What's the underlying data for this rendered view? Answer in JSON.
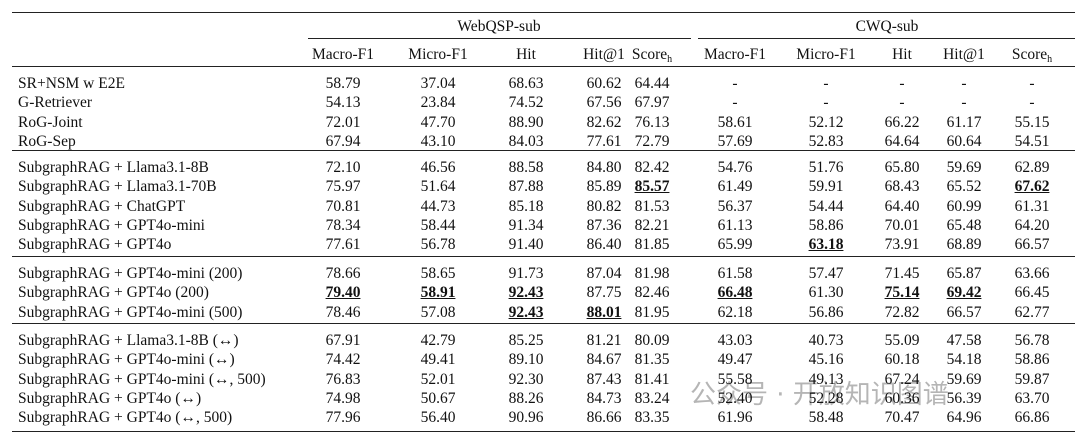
{
  "table": {
    "groups": [
      "WebQSP-sub",
      "CWQ-sub"
    ],
    "columns": [
      "Macro-F1",
      "Micro-F1",
      "Hit",
      "Hit@1",
      {
        "main": "Score",
        "sub": "h"
      }
    ],
    "sections": [
      [
        {
          "method": "SR+NSM w E2E",
          "values": [
            "58.79",
            "37.04",
            "68.63",
            "60.62",
            "64.44",
            "-",
            "-",
            "-",
            "-",
            "-"
          ]
        },
        {
          "method": "G-Retriever",
          "values": [
            "54.13",
            "23.84",
            "74.52",
            "67.56",
            "67.97",
            "-",
            "-",
            "-",
            "-",
            "-"
          ]
        },
        {
          "method": "RoG-Joint",
          "values": [
            "72.01",
            "47.70",
            "88.90",
            "82.62",
            "76.13",
            "58.61",
            "52.12",
            "66.22",
            "61.17",
            "55.15"
          ]
        },
        {
          "method": "RoG-Sep",
          "values": [
            "67.94",
            "43.10",
            "84.03",
            "77.61",
            "72.79",
            "57.69",
            "52.83",
            "64.64",
            "60.64",
            "54.51"
          ]
        }
      ],
      [
        {
          "method": "SubgraphRAG + Llama3.1-8B",
          "values": [
            "72.10",
            "46.56",
            "88.58",
            "84.80",
            "82.42",
            "54.76",
            "51.76",
            "65.80",
            "59.69",
            "62.89"
          ]
        },
        {
          "method": "SubgraphRAG + Llama3.1-70B",
          "values": [
            "75.97",
            "51.64",
            "87.88",
            "85.89",
            "85.57",
            "61.49",
            "59.91",
            "68.43",
            "65.52",
            "67.62"
          ]
        },
        {
          "method": "SubgraphRAG + ChatGPT",
          "values": [
            "70.81",
            "44.73",
            "85.18",
            "80.82",
            "81.53",
            "56.37",
            "54.44",
            "64.40",
            "60.99",
            "61.31"
          ]
        },
        {
          "method": "SubgraphRAG + GPT4o-mini",
          "values": [
            "78.34",
            "58.44",
            "91.34",
            "87.36",
            "82.21",
            "61.13",
            "58.86",
            "70.01",
            "65.48",
            "64.20"
          ]
        },
        {
          "method": "SubgraphRAG + GPT4o",
          "values": [
            "77.61",
            "56.78",
            "91.40",
            "86.40",
            "81.85",
            "65.99",
            "63.18",
            "73.91",
            "68.89",
            "66.57"
          ]
        }
      ],
      [
        {
          "method": "SubgraphRAG + GPT4o-mini (200)",
          "values": [
            "78.66",
            "58.65",
            "91.73",
            "87.04",
            "81.98",
            "61.58",
            "57.47",
            "71.45",
            "65.87",
            "63.66"
          ]
        },
        {
          "method": "SubgraphRAG + GPT4o (200)",
          "values": [
            "79.40",
            "58.91",
            "92.43",
            "87.75",
            "82.46",
            "66.48",
            "61.30",
            "75.14",
            "69.42",
            "66.45"
          ]
        },
        {
          "method": "SubgraphRAG + GPT4o-mini (500)",
          "values": [
            "78.46",
            "57.08",
            "92.43",
            "88.01",
            "81.95",
            "62.18",
            "56.86",
            "72.82",
            "66.57",
            "62.77"
          ]
        }
      ],
      [
        {
          "method": "SubgraphRAG + Llama3.1-8B (↔)",
          "values": [
            "67.91",
            "42.79",
            "85.25",
            "81.21",
            "80.09",
            "43.03",
            "40.73",
            "55.09",
            "47.58",
            "56.78"
          ]
        },
        {
          "method": "SubgraphRAG + GPT4o-mini (↔)",
          "values": [
            "74.42",
            "49.41",
            "89.10",
            "84.67",
            "81.35",
            "49.47",
            "45.16",
            "60.18",
            "54.18",
            "58.86"
          ]
        },
        {
          "method": "SubgraphRAG + GPT4o-mini (↔, 500)",
          "values": [
            "76.83",
            "52.01",
            "92.30",
            "87.43",
            "81.41",
            "55.58",
            "49.13",
            "67.24",
            "59.69",
            "59.87"
          ]
        },
        {
          "method": "SubgraphRAG + GPT4o (↔)",
          "values": [
            "74.98",
            "50.67",
            "88.26",
            "84.73",
            "83.24",
            "52.40",
            "52.28",
            "60.36",
            "56.39",
            "63.70"
          ]
        },
        {
          "method": "SubgraphRAG + GPT4o (↔, 500)",
          "values": [
            "77.96",
            "56.40",
            "90.96",
            "86.66",
            "83.35",
            "61.96",
            "58.48",
            "70.47",
            "64.96",
            "66.86"
          ]
        }
      ]
    ]
  },
  "watermark": "公众号 · 开放知识图谱"
}
